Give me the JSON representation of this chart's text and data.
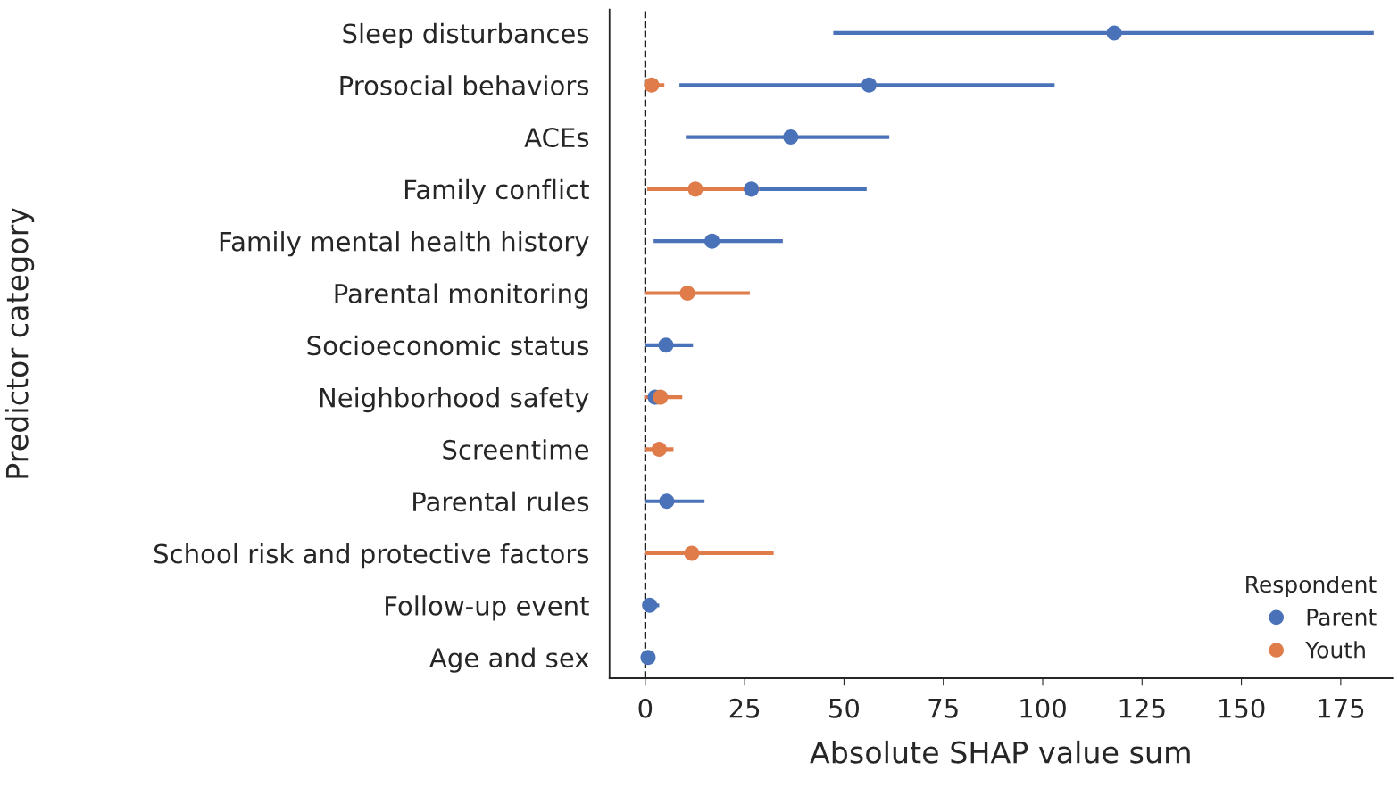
{
  "chart_data": {
    "type": "scatter",
    "orientation": "horizontal",
    "xlabel": "Absolute SHAP value sum",
    "ylabel": "Predictor category",
    "legend_title": "Respondent",
    "legend": "bottom right",
    "marker": "circle",
    "grid": false,
    "categories": [
      "Sleep disturbances",
      "Prosocial behaviors",
      "ACEs",
      "Family conflict",
      "Family mental health history",
      "Parental monitoring",
      "Socioeconomic status",
      "Neighborhood safety",
      "Screentime",
      "Parental rules",
      "School risk and protective factors",
      "Follow-up event",
      "Age and sex"
    ],
    "xlim": [
      -9,
      188
    ],
    "xticks": [
      0,
      25,
      50,
      75,
      100,
      125,
      150,
      175
    ],
    "ref_lines": [
      {
        "axis": "x",
        "value": 0,
        "color": "#000000",
        "line_style": "dashed"
      }
    ],
    "series": [
      {
        "name": "Parent",
        "color": "#4a72b8",
        "values": [
          118,
          56.3,
          36.6,
          26.7,
          16.8,
          null,
          5.2,
          2.5,
          null,
          5.4,
          null,
          1.1,
          0.7
        ],
        "errors": [
          [
            47.3,
            183.3
          ],
          [
            8.6,
            103
          ],
          [
            10.2,
            61.4
          ],
          [
            0.5,
            55.7
          ],
          [
            2.1,
            34.6
          ],
          null,
          [
            0,
            12
          ],
          null,
          null,
          [
            0,
            14.9
          ],
          null,
          [
            0,
            3.5
          ],
          null
        ]
      },
      {
        "name": "Youth",
        "color": "#e07b4a",
        "values": [
          null,
          1.6,
          null,
          12.6,
          null,
          10.6,
          null,
          3.8,
          3.5,
          null,
          11.7,
          null,
          null
        ],
        "errors": [
          null,
          [
            0,
            4.8
          ],
          null,
          [
            0.5,
            28.7
          ],
          null,
          [
            0,
            26.3
          ],
          null,
          [
            0,
            9.3
          ],
          [
            0,
            7.1
          ],
          null,
          [
            0,
            32.3
          ],
          null,
          null
        ]
      }
    ]
  }
}
